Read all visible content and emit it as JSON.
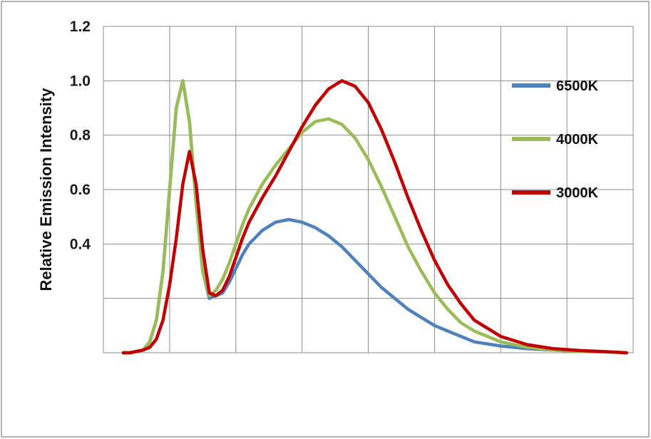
{
  "chart_data": {
    "type": "line",
    "title": "",
    "xlabel": "",
    "ylabel": "Relative Emission Intensity",
    "ylim": [
      0.0,
      1.2
    ],
    "xlim": [
      380,
      780
    ],
    "y_ticks": [
      "0.4",
      "0.6",
      "0.8",
      "1.0",
      "1.2"
    ],
    "grid": true,
    "legend_position": "right",
    "series": [
      {
        "name": "6500K",
        "color": "#4f81bd",
        "x": [
          395,
          400,
          410,
          415,
          420,
          425,
          430,
          435,
          440,
          445,
          450,
          455,
          460,
          465,
          470,
          475,
          480,
          485,
          490,
          500,
          510,
          520,
          530,
          540,
          550,
          560,
          570,
          580,
          590,
          600,
          610,
          620,
          630,
          640,
          650,
          660,
          680,
          700,
          720,
          740,
          760,
          775
        ],
        "y": [
          0.0,
          0.0,
          0.01,
          0.04,
          0.12,
          0.3,
          0.6,
          0.9,
          1.0,
          0.85,
          0.55,
          0.3,
          0.2,
          0.21,
          0.22,
          0.26,
          0.31,
          0.36,
          0.4,
          0.45,
          0.48,
          0.49,
          0.48,
          0.46,
          0.43,
          0.39,
          0.34,
          0.29,
          0.24,
          0.2,
          0.16,
          0.13,
          0.1,
          0.08,
          0.06,
          0.04,
          0.025,
          0.015,
          0.01,
          0.005,
          0.003,
          0.0
        ]
      },
      {
        "name": "4000K",
        "color": "#9bbb59",
        "x": [
          395,
          400,
          410,
          415,
          420,
          425,
          430,
          435,
          440,
          445,
          450,
          455,
          460,
          465,
          470,
          475,
          480,
          485,
          490,
          500,
          510,
          520,
          530,
          540,
          550,
          560,
          570,
          580,
          590,
          600,
          610,
          620,
          630,
          640,
          650,
          660,
          680,
          700,
          720,
          740,
          760,
          775
        ],
        "y": [
          0.0,
          0.0,
          0.01,
          0.04,
          0.12,
          0.3,
          0.6,
          0.9,
          1.0,
          0.85,
          0.55,
          0.3,
          0.21,
          0.23,
          0.27,
          0.33,
          0.4,
          0.47,
          0.53,
          0.62,
          0.69,
          0.75,
          0.81,
          0.85,
          0.86,
          0.84,
          0.79,
          0.71,
          0.61,
          0.5,
          0.39,
          0.3,
          0.22,
          0.16,
          0.11,
          0.08,
          0.04,
          0.02,
          0.01,
          0.005,
          0.003,
          0.0
        ]
      },
      {
        "name": "3000K",
        "color": "#c00000",
        "x": [
          395,
          400,
          410,
          415,
          420,
          425,
          430,
          435,
          440,
          445,
          450,
          455,
          460,
          465,
          470,
          475,
          480,
          485,
          490,
          500,
          510,
          520,
          530,
          540,
          550,
          560,
          570,
          580,
          590,
          600,
          610,
          620,
          630,
          640,
          650,
          660,
          680,
          700,
          720,
          740,
          760,
          775
        ],
        "y": [
          0.0,
          0.0,
          0.01,
          0.02,
          0.05,
          0.12,
          0.25,
          0.42,
          0.62,
          0.74,
          0.62,
          0.38,
          0.22,
          0.21,
          0.23,
          0.28,
          0.35,
          0.42,
          0.48,
          0.57,
          0.65,
          0.74,
          0.83,
          0.91,
          0.97,
          1.0,
          0.98,
          0.92,
          0.82,
          0.7,
          0.57,
          0.45,
          0.34,
          0.25,
          0.18,
          0.12,
          0.06,
          0.03,
          0.015,
          0.008,
          0.004,
          0.0
        ]
      }
    ]
  }
}
